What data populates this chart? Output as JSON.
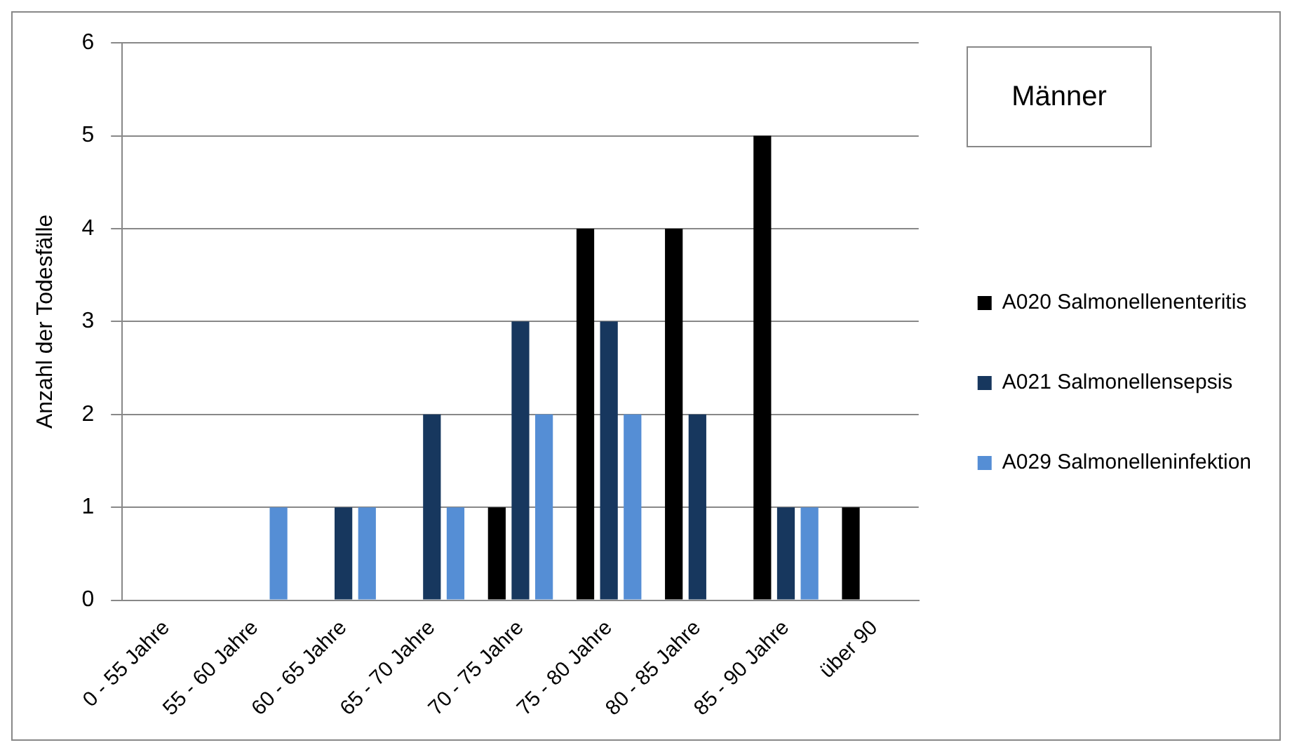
{
  "chart_data": {
    "type": "bar",
    "ylabel": "Anzahl der Todesfälle",
    "annotations": [
      "Männer"
    ],
    "categories": [
      "0 - 55 Jahre",
      "55 - 60 Jahre",
      "60 - 65 Jahre",
      "65 - 70 Jahre",
      "70 - 75 Jahre",
      "75 - 80 Jahre",
      "80 - 85 Jahre",
      "85 - 90 Jahre",
      "über 90"
    ],
    "series": [
      {
        "name": "A020 Salmonellenenteritis",
        "color": "#000000",
        "values": [
          0,
          0,
          0,
          0,
          1,
          4,
          4,
          5,
          1
        ]
      },
      {
        "name": "A021 Salmonellensepsis",
        "color": "#17375e",
        "values": [
          0,
          0,
          1,
          2,
          3,
          3,
          2,
          1,
          0
        ]
      },
      {
        "name": "A029 Salmonelleninfektion",
        "color": "#558ed5",
        "values": [
          0,
          1,
          1,
          1,
          2,
          2,
          0,
          1,
          0
        ]
      }
    ],
    "ylim": [
      0,
      6
    ],
    "yticks": [
      0,
      1,
      2,
      3,
      4,
      5,
      6
    ],
    "grid": "y",
    "legend": "right"
  }
}
